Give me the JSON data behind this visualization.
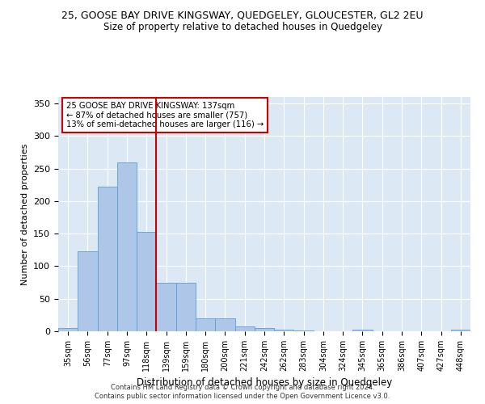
{
  "title": "25, GOOSE BAY DRIVE KINGSWAY, QUEDGELEY, GLOUCESTER, GL2 2EU",
  "subtitle": "Size of property relative to detached houses in Quedgeley",
  "xlabel": "Distribution of detached houses by size in Quedgeley",
  "ylabel": "Number of detached properties",
  "bin_labels": [
    "35sqm",
    "56sqm",
    "77sqm",
    "97sqm",
    "118sqm",
    "139sqm",
    "159sqm",
    "180sqm",
    "200sqm",
    "221sqm",
    "242sqm",
    "262sqm",
    "283sqm",
    "304sqm",
    "324sqm",
    "345sqm",
    "365sqm",
    "386sqm",
    "407sqm",
    "427sqm",
    "448sqm"
  ],
  "bar_heights": [
    5,
    123,
    222,
    260,
    153,
    75,
    75,
    20,
    20,
    7,
    5,
    3,
    1,
    0,
    0,
    2,
    0,
    0,
    0,
    0,
    2
  ],
  "bar_color": "#aec6e8",
  "bar_edge_color": "#5a9fd4",
  "vline_color": "#cc0000",
  "annotation_text": "25 GOOSE BAY DRIVE KINGSWAY: 137sqm\n← 87% of detached houses are smaller (757)\n13% of semi-detached houses are larger (116) →",
  "annotation_box_color": "#ffffff",
  "annotation_box_edge": "#cc0000",
  "ylim": [
    0,
    360
  ],
  "yticks": [
    0,
    50,
    100,
    150,
    200,
    250,
    300,
    350
  ],
  "bg_color": "#dce9f5",
  "footer1": "Contains HM Land Registry data © Crown copyright and database right 2024.",
  "footer2": "Contains public sector information licensed under the Open Government Licence v3.0.",
  "title_fontsize": 9,
  "subtitle_fontsize": 8.5
}
